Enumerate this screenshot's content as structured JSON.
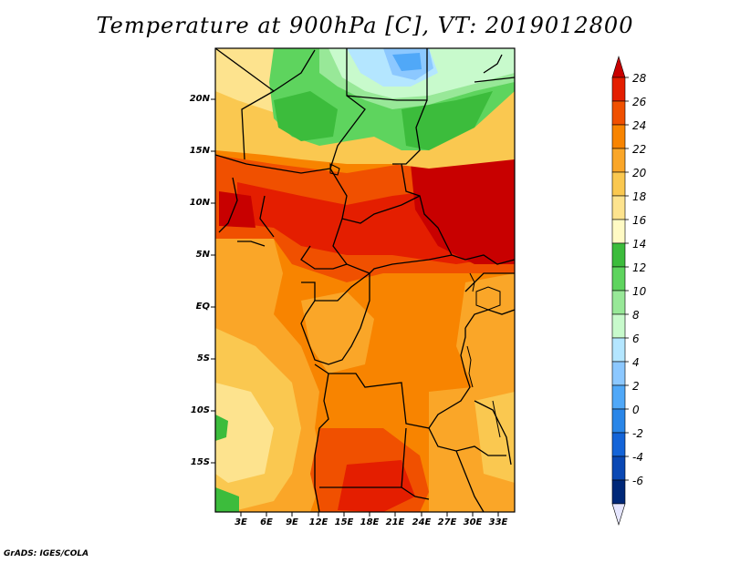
{
  "title": "Temperature at 900hPa [C], VT: 2019012800",
  "credit": "GrADS: IGES/COLA",
  "lat_labels": [
    "20N",
    "15N",
    "10N",
    "5N",
    "EQ",
    "5S",
    "10S",
    "15S"
  ],
  "lon_labels": [
    "3E",
    "6E",
    "9E",
    "12E",
    "15E",
    "18E",
    "21E",
    "24E",
    "27E",
    "30E",
    "33E"
  ],
  "colorbar": {
    "labels": [
      "28",
      "26",
      "24",
      "22",
      "20",
      "18",
      "16",
      "14",
      "12",
      "10",
      "8",
      "6",
      "4",
      "2",
      "0",
      "-2",
      "-4",
      "-6"
    ],
    "colors": [
      "#c80000",
      "#e41e00",
      "#f05000",
      "#f88400",
      "#faa628",
      "#fac850",
      "#fde38e",
      "#fffac4",
      "#3cbc3c",
      "#5ed45e",
      "#98e898",
      "#c8facc",
      "#b4e6ff",
      "#8cc8ff",
      "#50a8f8",
      "#2a86e8",
      "#1464d8",
      "#0a48b4",
      "#002878",
      "#000a5a"
    ]
  }
}
